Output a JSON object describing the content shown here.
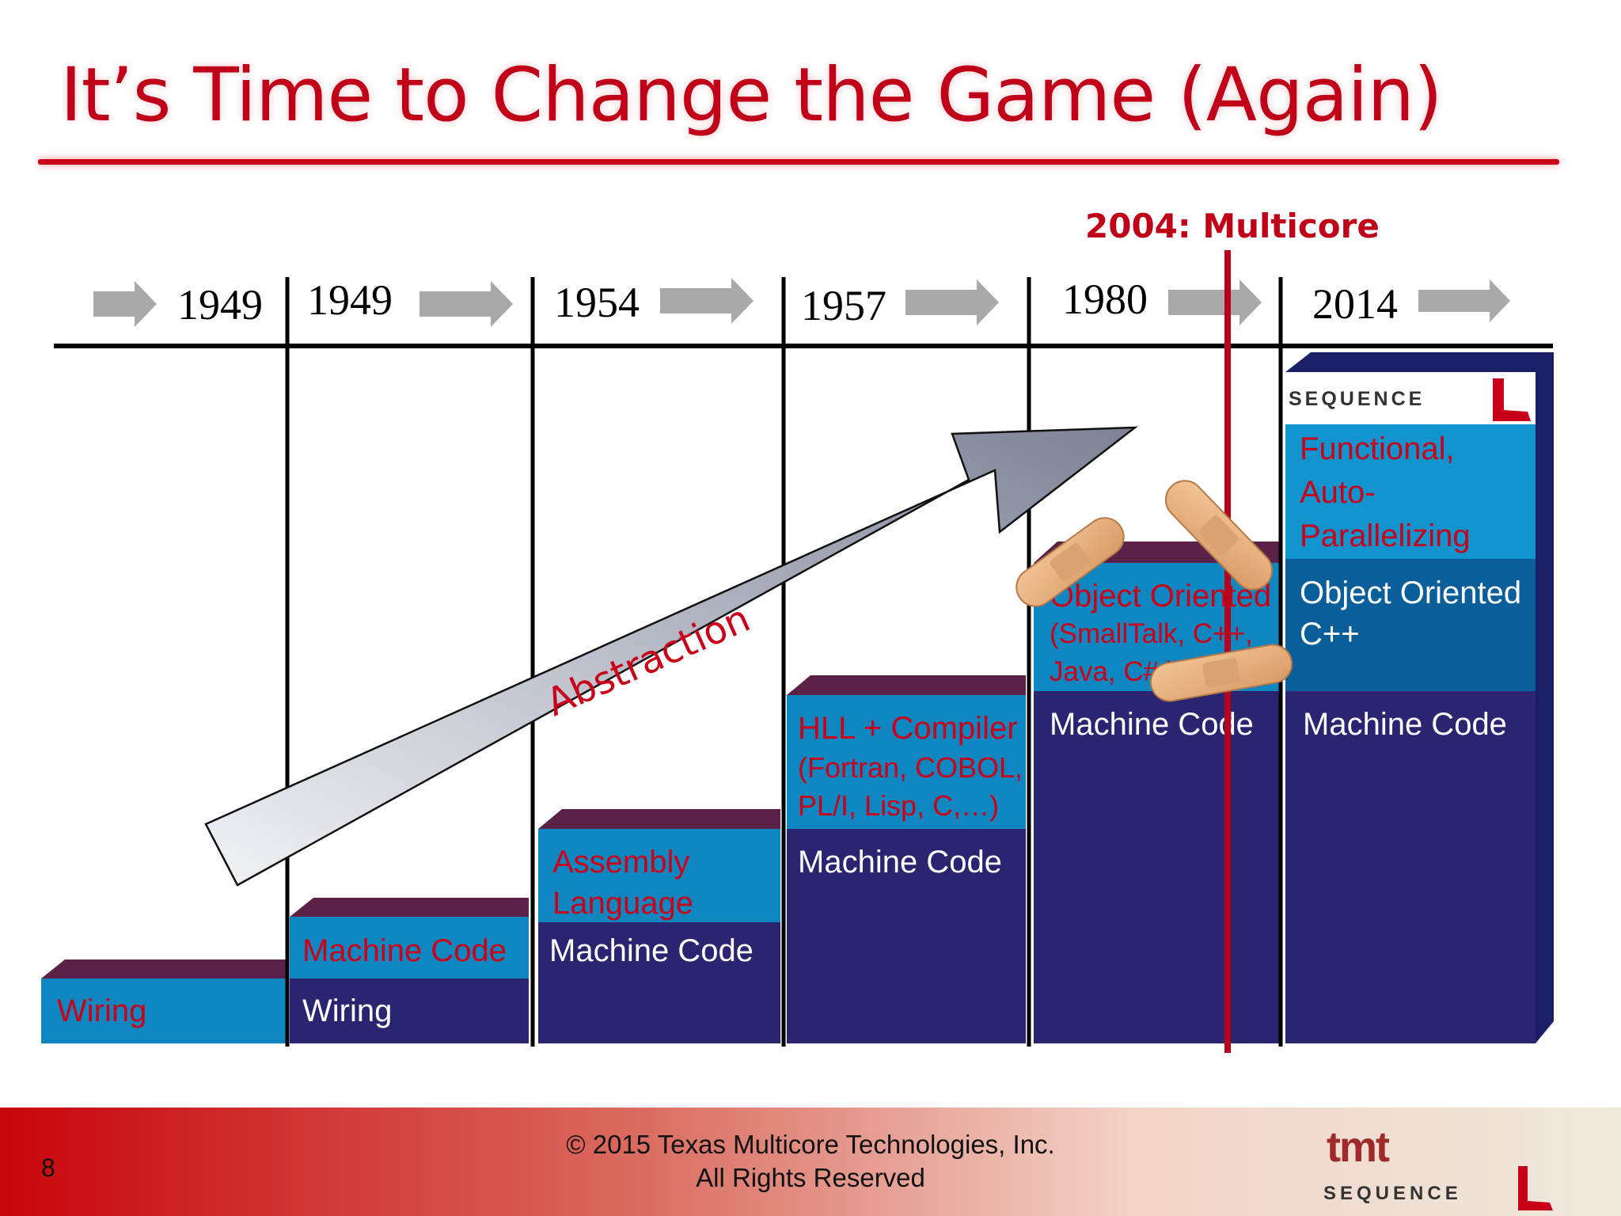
{
  "slide": {
    "title": "It’s Time to Change the Game (Again)",
    "page_number": "8"
  },
  "timeline": {
    "years": [
      "1949",
      "1949",
      "1954",
      "1957",
      "1980",
      "2014"
    ],
    "marker_label": "2004: Multicore",
    "arrow_label": "Abstraction"
  },
  "stacks": [
    {
      "top_label": "Wiring",
      "lower_label": ""
    },
    {
      "top_label": "Machine Code",
      "lower_label": "Wiring"
    },
    {
      "top_label": "Assembly Language",
      "lower_label": "Machine Code"
    },
    {
      "top_label": "HLL + Compiler",
      "top_detail": "(Fortran, COBOL, PL/I,  Lisp, C,…)",
      "lower_label": "Machine Code"
    },
    {
      "top_label": "Object Oriented",
      "top_detail": "(SmallTalk, C++, Java, C#,)",
      "lower_label": "Machine Code"
    },
    {
      "logo_text": "SEQUENCE",
      "top_label": "Functional, Auto-Parallelizing",
      "middle_label": "Object Oriented C++",
      "lower_label": "Machine Code"
    }
  ],
  "footer": {
    "copyright_line1": "© 2015 Texas Multicore Technologies, Inc.",
    "copyright_line2": "All Rights Reserved",
    "logo_top": "tmt",
    "logo_bottom": "SEQUENCE"
  },
  "colors": {
    "title_red": "#c00018",
    "navy": "#2a2471",
    "teal": "#0f86bf",
    "plum": "#5c2147",
    "arrow_gray": "#a9a9a9"
  }
}
